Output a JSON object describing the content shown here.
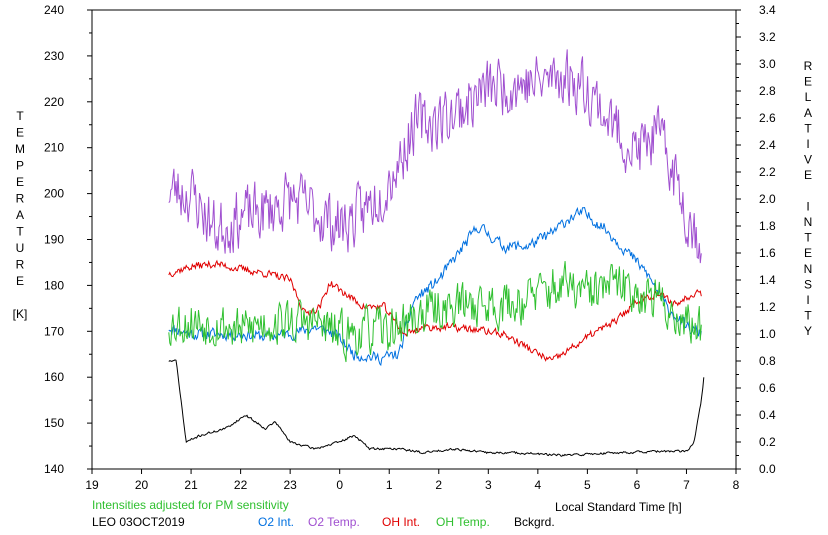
{
  "chart_data": {
    "type": "line",
    "left_axis_label_letters": [
      "T",
      "E",
      "M",
      "P",
      "E",
      "R",
      "A",
      "T",
      "U",
      "R",
      "E",
      "",
      "[K]"
    ],
    "right_axis_label_letters": [
      "R",
      "E",
      "L",
      "A",
      "T",
      "I",
      "V",
      "E",
      "",
      "I",
      "N",
      "T",
      "E",
      "N",
      "S",
      "I",
      "T",
      "Y"
    ],
    "xlabel": "Local Standard Time [h]",
    "x_ticks": [
      "19",
      "20",
      "21",
      "22",
      "23",
      "0",
      "1",
      "2",
      "3",
      "4",
      "5",
      "6",
      "7",
      "8"
    ],
    "x_range_hours": [
      19,
      32
    ],
    "y_left_ticks": [
      "140",
      "150",
      "160",
      "170",
      "180",
      "190",
      "200",
      "210",
      "220",
      "230",
      "240"
    ],
    "y_left_range": [
      140,
      240
    ],
    "y_right_ticks": [
      "0.0",
      "0.2",
      "0.4",
      "0.6",
      "0.8",
      "1.0",
      "1.2",
      "1.4",
      "1.6",
      "1.8",
      "2.0",
      "2.2",
      "2.4",
      "2.6",
      "2.8",
      "3.0",
      "3.2",
      "3.4"
    ],
    "y_right_range": [
      0,
      3.4
    ],
    "note": "Intensities adjusted for PM sensitivity",
    "station": "LEO 03OCT2019",
    "series": [
      {
        "name": "O2 Int.",
        "color": "#0070e0",
        "axis": "right",
        "noise": 0.06,
        "seed": 11,
        "points": [
          [
            20.55,
            1.05
          ],
          [
            21,
            1.0
          ],
          [
            21.5,
            1.0
          ],
          [
            22,
            1.0
          ],
          [
            22.5,
            0.98
          ],
          [
            23,
            1.0
          ],
          [
            23.5,
            1.05
          ],
          [
            23.9,
            1.0
          ],
          [
            24.3,
            0.85
          ],
          [
            24.8,
            0.82
          ],
          [
            25.2,
            0.85
          ],
          [
            25.5,
            1.25
          ],
          [
            26,
            1.4
          ],
          [
            26.5,
            1.65
          ],
          [
            26.8,
            1.8
          ],
          [
            27.3,
            1.65
          ],
          [
            27.8,
            1.65
          ],
          [
            28.3,
            1.75
          ],
          [
            28.6,
            1.85
          ],
          [
            28.9,
            1.9
          ],
          [
            29.3,
            1.8
          ],
          [
            29.7,
            1.65
          ],
          [
            30.2,
            1.45
          ],
          [
            30.6,
            1.2
          ],
          [
            31.0,
            1.05
          ],
          [
            31.3,
            1.0
          ]
        ]
      },
      {
        "name": "O2 Temp.",
        "color": "#a050d0",
        "axis": "left",
        "noise": 9,
        "seed": 23,
        "points": [
          [
            20.55,
            201
          ],
          [
            21,
            200
          ],
          [
            21.5,
            192
          ],
          [
            22,
            195
          ],
          [
            22.5,
            196
          ],
          [
            23,
            199
          ],
          [
            23.5,
            196
          ],
          [
            24,
            193
          ],
          [
            24.4,
            195
          ],
          [
            24.8,
            200
          ],
          [
            25.2,
            207
          ],
          [
            25.5,
            215
          ],
          [
            26,
            216
          ],
          [
            26.5,
            219
          ],
          [
            27,
            223
          ],
          [
            27.5,
            224
          ],
          [
            28,
            224
          ],
          [
            28.5,
            226
          ],
          [
            29,
            223
          ],
          [
            29.5,
            215
          ],
          [
            30,
            209
          ],
          [
            30.4,
            213
          ],
          [
            30.8,
            203
          ],
          [
            31.1,
            193
          ],
          [
            31.3,
            190
          ]
        ]
      },
      {
        "name": "OH Int.",
        "color": "#e00000",
        "axis": "right",
        "noise": 0.04,
        "seed": 37,
        "points": [
          [
            20.55,
            1.45
          ],
          [
            21,
            1.5
          ],
          [
            21.5,
            1.52
          ],
          [
            22,
            1.48
          ],
          [
            22.5,
            1.45
          ],
          [
            23,
            1.4
          ],
          [
            23.3,
            1.15
          ],
          [
            23.6,
            1.2
          ],
          [
            23.8,
            1.38
          ],
          [
            24.1,
            1.3
          ],
          [
            24.5,
            1.2
          ],
          [
            24.9,
            1.2
          ],
          [
            25.3,
            1.0
          ],
          [
            25.7,
            1.05
          ],
          [
            26.2,
            1.05
          ],
          [
            26.8,
            1.03
          ],
          [
            27.3,
            1.0
          ],
          [
            27.7,
            0.92
          ],
          [
            28.0,
            0.85
          ],
          [
            28.3,
            0.8
          ],
          [
            28.7,
            0.9
          ],
          [
            29.1,
            1.0
          ],
          [
            29.6,
            1.1
          ],
          [
            30.0,
            1.25
          ],
          [
            30.4,
            1.3
          ],
          [
            30.8,
            1.22
          ],
          [
            31.2,
            1.32
          ],
          [
            31.3,
            1.3
          ]
        ]
      },
      {
        "name": "OH Temp.",
        "color": "#30c030",
        "axis": "left",
        "noise": 7,
        "seed": 53,
        "points": [
          [
            20.55,
            172
          ],
          [
            21,
            172
          ],
          [
            21.5,
            172
          ],
          [
            22,
            170
          ],
          [
            22.5,
            172
          ],
          [
            23,
            172
          ],
          [
            23.5,
            172
          ],
          [
            24,
            169
          ],
          [
            24.5,
            170
          ],
          [
            25,
            170
          ],
          [
            25.5,
            173
          ],
          [
            26,
            175
          ],
          [
            26.5,
            176
          ],
          [
            27,
            176
          ],
          [
            27.5,
            176
          ],
          [
            28,
            178
          ],
          [
            28.5,
            180
          ],
          [
            29,
            178
          ],
          [
            29.5,
            180
          ],
          [
            30,
            179
          ],
          [
            30.5,
            176
          ],
          [
            31,
            172
          ],
          [
            31.3,
            170
          ]
        ]
      },
      {
        "name": "Bckgrd.",
        "color": "#000000",
        "axis": "right",
        "noise": 0.012,
        "seed": 71,
        "points": [
          [
            20.55,
            0.8
          ],
          [
            20.7,
            0.8
          ],
          [
            20.8,
            0.5
          ],
          [
            20.9,
            0.2
          ],
          [
            21.2,
            0.25
          ],
          [
            21.7,
            0.3
          ],
          [
            22.1,
            0.4
          ],
          [
            22.5,
            0.3
          ],
          [
            22.7,
            0.35
          ],
          [
            23.0,
            0.2
          ],
          [
            23.5,
            0.15
          ],
          [
            24.0,
            0.2
          ],
          [
            24.3,
            0.25
          ],
          [
            24.6,
            0.15
          ],
          [
            25.2,
            0.15
          ],
          [
            25.7,
            0.12
          ],
          [
            26.3,
            0.15
          ],
          [
            27.0,
            0.12
          ],
          [
            27.6,
            0.12
          ],
          [
            28.5,
            0.1
          ],
          [
            29.5,
            0.12
          ],
          [
            30.5,
            0.13
          ],
          [
            31.0,
            0.13
          ],
          [
            31.15,
            0.2
          ],
          [
            31.3,
            0.5
          ],
          [
            31.35,
            0.68
          ]
        ]
      }
    ]
  }
}
